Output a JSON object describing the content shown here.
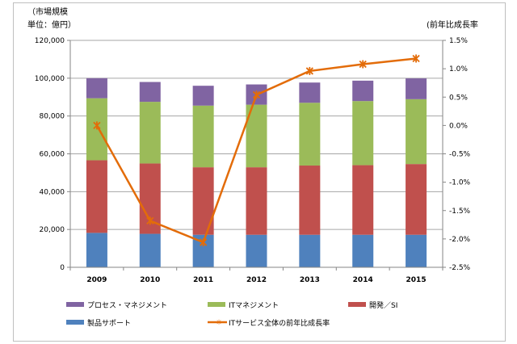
{
  "chart_data": {
    "type": "bar",
    "stacked": true,
    "categories": [
      "2009",
      "2010",
      "2011",
      "2012",
      "2013",
      "2014",
      "2015"
    ],
    "series": [
      {
        "name": "製品サポート",
        "color": "#4f81bd",
        "values": [
          18200,
          17700,
          17200,
          17200,
          17200,
          17200,
          17200
        ]
      },
      {
        "name": "開発／SI",
        "color": "#c0504d",
        "values": [
          38400,
          37200,
          35700,
          35700,
          36600,
          36800,
          37400
        ]
      },
      {
        "name": "ITマネジメント",
        "color": "#9bbb59",
        "values": [
          32800,
          32600,
          32600,
          33100,
          33200,
          33900,
          34300
        ]
      },
      {
        "name": "プロセス・マネジメント",
        "color": "#8064a2",
        "values": [
          10600,
          10500,
          10500,
          10700,
          10700,
          10800,
          11000
        ]
      }
    ],
    "line_series": {
      "name": "ITサービス全体の前年比成長率",
      "color": "#e36c09",
      "axis": "right",
      "values": [
        0.0,
        -1.68,
        -2.06,
        0.54,
        0.96,
        1.08,
        1.18
      ]
    },
    "left_axis": {
      "label_line1": "（市場規模",
      "label_line2": "単位：億円）",
      "ylim": [
        0,
        120000
      ],
      "ticks": [
        "0",
        "20,000",
        "40,000",
        "60,000",
        "80,000",
        "100,000",
        "120,000"
      ]
    },
    "right_axis": {
      "label": "(前年比成長率",
      "ylim": [
        -2.5,
        1.5
      ],
      "ticks": [
        "-2.5%",
        "-2.0%",
        "-1.5%",
        "-1.0%",
        "-0.5%",
        "0.0%",
        "0.5%",
        "1.0%",
        "1.5%"
      ]
    },
    "legend": [
      "プロセス・マネジメント",
      "ITマネジメント",
      "開発／SI",
      "製品サポート",
      "ITサービス全体の前年比成長率"
    ],
    "legend_position": "bottom",
    "grid": true
  }
}
